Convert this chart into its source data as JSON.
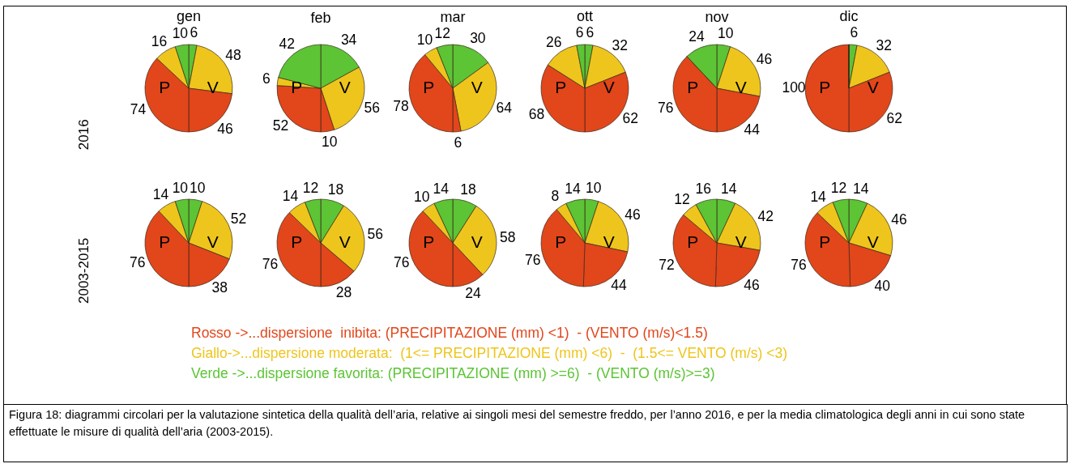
{
  "chart_data": [
    {
      "type": "pie",
      "title": "gen",
      "ylabel": "2016",
      "categories": [
        null,
        null,
        null,
        null,
        null,
        null
      ],
      "values": [
        6,
        48,
        46,
        74,
        16,
        10
      ],
      "value_labels": [
        "6",
        "48",
        "46",
        "74",
        "16",
        "10"
      ],
      "colors": [
        "#5cc435",
        "#eec51c",
        "#e2461b",
        "#e2461b",
        "#eec51c",
        "#5cc435"
      ],
      "annotations": [
        "P",
        "V"
      ]
    },
    {
      "type": "pie",
      "title": "feb",
      "categories": [
        null,
        null,
        null,
        null,
        null,
        null
      ],
      "values": [
        34,
        56,
        10,
        52,
        6,
        42
      ],
      "value_labels": [
        "34",
        "56",
        "10",
        "52",
        "6",
        "42"
      ],
      "colors": [
        "#5cc435",
        "#eec51c",
        "#e2461b",
        "#e2461b",
        "#eec51c",
        "#5cc435"
      ],
      "annotations": [
        "P",
        "V"
      ]
    },
    {
      "type": "pie",
      "title": "mar",
      "categories": [
        null,
        null,
        null,
        null,
        null,
        null
      ],
      "values": [
        30,
        64,
        6,
        78,
        10,
        12
      ],
      "value_labels": [
        "30",
        "64",
        "6",
        "78",
        "10",
        "12"
      ],
      "colors": [
        "#5cc435",
        "#eec51c",
        "#e2461b",
        "#e2461b",
        "#eec51c",
        "#5cc435"
      ],
      "annotations": [
        "P",
        "V"
      ]
    },
    {
      "type": "pie",
      "title": "ott",
      "categories": [
        null,
        null,
        null,
        null,
        null,
        null
      ],
      "values": [
        6,
        32,
        62,
        68,
        26,
        6
      ],
      "value_labels": [
        "6",
        "32",
        "62",
        "68",
        "26",
        "6"
      ],
      "colors": [
        "#5cc435",
        "#eec51c",
        "#e2461b",
        "#e2461b",
        "#eec51c",
        "#5cc435"
      ],
      "annotations": [
        "P",
        "V"
      ]
    },
    {
      "type": "pie",
      "title": "nov",
      "categories": [
        null,
        null,
        null,
        null,
        null,
        null
      ],
      "values": [
        10,
        46,
        44,
        76,
        0,
        24
      ],
      "value_labels": [
        "10",
        "46",
        "44",
        "76",
        null,
        "24"
      ],
      "colors": [
        "#5cc435",
        "#eec51c",
        "#e2461b",
        "#e2461b",
        "#eec51c",
        "#5cc435"
      ],
      "annotations": [
        "P",
        "V"
      ]
    },
    {
      "type": "pie",
      "title": "dic",
      "categories": [
        null,
        null,
        null,
        null,
        null,
        null
      ],
      "values": [
        6,
        32,
        62,
        100,
        0,
        0
      ],
      "value_labels": [
        "6",
        "32",
        "62",
        "100",
        null,
        null
      ],
      "colors": [
        "#5cc435",
        "#eec51c",
        "#e2461b",
        "#e2461b",
        "#eec51c",
        "#5cc435"
      ],
      "annotations": [
        "P",
        "V"
      ]
    },
    {
      "type": "pie",
      "ylabel": "2003-2015",
      "categories": [
        null,
        null,
        null,
        null,
        null,
        null
      ],
      "values": [
        10,
        52,
        38,
        76,
        14,
        10
      ],
      "value_labels": [
        "10",
        "52",
        "38",
        "76",
        "14",
        "10"
      ],
      "colors": [
        "#5cc435",
        "#eec51c",
        "#e2461b",
        "#e2461b",
        "#eec51c",
        "#5cc435"
      ],
      "annotations": [
        "P",
        "V"
      ]
    },
    {
      "type": "pie",
      "categories": [
        null,
        null,
        null,
        null,
        null,
        null
      ],
      "values": [
        18,
        56,
        28,
        76,
        14,
        12
      ],
      "value_labels": [
        "18",
        "56",
        "28",
        "76",
        "14",
        "12"
      ],
      "colors": [
        "#5cc435",
        "#eec51c",
        "#e2461b",
        "#e2461b",
        "#eec51c",
        "#5cc435"
      ],
      "annotations": [
        "P",
        "V"
      ]
    },
    {
      "type": "pie",
      "categories": [
        null,
        null,
        null,
        null,
        null,
        null
      ],
      "values": [
        18,
        58,
        24,
        76,
        10,
        14
      ],
      "value_labels": [
        "18",
        "58",
        "24",
        "76",
        "10",
        "14"
      ],
      "colors": [
        "#5cc435",
        "#eec51c",
        "#e2461b",
        "#e2461b",
        "#eec51c",
        "#5cc435"
      ],
      "annotations": [
        "P",
        "V"
      ]
    },
    {
      "type": "pie",
      "categories": [
        null,
        null,
        null,
        null,
        null,
        null
      ],
      "values": [
        10,
        46,
        44,
        76,
        8,
        14
      ],
      "value_labels": [
        "10",
        "46",
        "44",
        "76",
        "8",
        "14"
      ],
      "colors": [
        "#5cc435",
        "#eec51c",
        "#e2461b",
        "#e2461b",
        "#eec51c",
        "#5cc435"
      ],
      "annotations": [
        "P",
        "V"
      ]
    },
    {
      "type": "pie",
      "categories": [
        null,
        null,
        null,
        null,
        null,
        null
      ],
      "values": [
        14,
        42,
        46,
        72,
        12,
        16
      ],
      "value_labels": [
        "14",
        "42",
        "46",
        "72",
        "12",
        "16"
      ],
      "colors": [
        "#5cc435",
        "#eec51c",
        "#e2461b",
        "#e2461b",
        "#eec51c",
        "#5cc435"
      ],
      "annotations": [
        "P",
        "V"
      ]
    },
    {
      "type": "pie",
      "categories": [
        null,
        null,
        null,
        null,
        null,
        null
      ],
      "values": [
        14,
        46,
        40,
        76,
        14,
        12
      ],
      "value_labels": [
        "14",
        "46",
        "40",
        "76",
        "14",
        "12"
      ],
      "colors": [
        "#5cc435",
        "#eec51c",
        "#e2461b",
        "#e2461b",
        "#eec51c",
        "#5cc435"
      ],
      "annotations": [
        "P",
        "V",
        "Rosso ->...dispersione  inibita: (PRECIPITAZIONE (mm) <1)  - (VENTO (m/s)<1.5)",
        "Giallo->...dispersione moderata:  (1<= PRECIPITAZIONE (mm) <6)  -  (1.5<= VENTO (m/s) <3)",
        "Verde ->...dispersione favorita: (PRECIPITAZIONE (mm) >=6)  - (VENTO (m/s)>=3)",
        "Figura 18: diagrammi circolari per la valutazione sintetica della qualità dell’aria, relative ai singoli mesi del semestre freddo, per l’anno 2016, e per la media climatologica degli anni in cui sono state effettuate le misure di qualità dell’aria (2003-2015)."
      ]
    }
  ]
}
